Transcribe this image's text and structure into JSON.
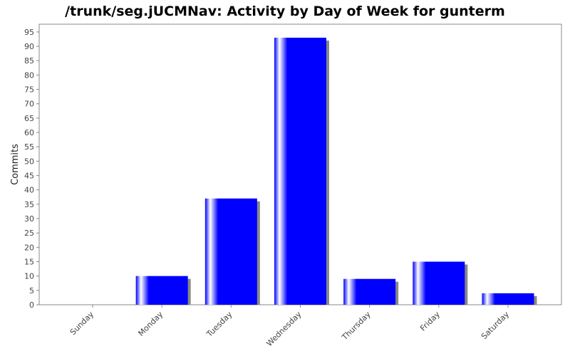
{
  "chart_data": {
    "type": "bar",
    "title": "/trunk/seg.jUCMNav: Activity by Day of Week for gunterm",
    "y_label": "Commits",
    "categories": [
      "Sunday",
      "Monday",
      "Tuesday",
      "Wednesday",
      "Thursday",
      "Friday",
      "Saturday"
    ],
    "values": [
      0,
      10,
      37,
      93,
      9,
      15,
      4
    ],
    "color": "#0000ff",
    "ylim": [
      0,
      97.7
    ],
    "yticks": [
      0,
      5,
      10,
      15,
      20,
      25,
      30,
      35,
      40,
      45,
      50,
      55,
      60,
      65,
      70,
      75,
      80,
      85,
      90,
      95
    ]
  }
}
